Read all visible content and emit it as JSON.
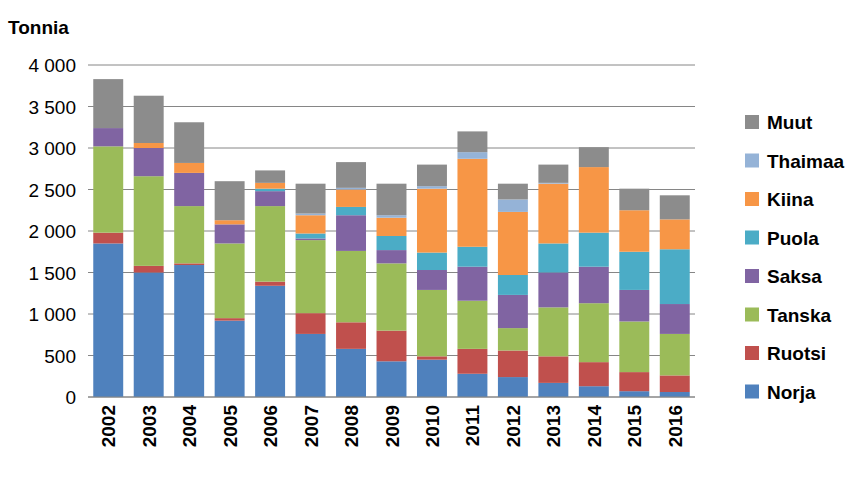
{
  "chart_data": {
    "type": "bar",
    "stacked": true,
    "grid": true,
    "legend": "right",
    "ylabel": "Tonnia",
    "categories": [
      "2002",
      "2003",
      "2004",
      "2005",
      "2006",
      "2007",
      "2008",
      "2009",
      "2010",
      "2011",
      "2012",
      "2013",
      "2014",
      "2015",
      "2016"
    ],
    "ylim": [
      0,
      4000
    ],
    "yticks": [
      0,
      500,
      {
        "value": 1000,
        "label": "1 000"
      },
      {
        "value": 1500,
        "label": "1 500"
      },
      {
        "value": 2000,
        "label": "2 000"
      },
      {
        "value": 2500,
        "label": "2 500"
      },
      {
        "value": 3000,
        "label": "3 000"
      },
      {
        "value": 3500,
        "label": "3 500"
      },
      {
        "value": 4000,
        "label": "4 000"
      }
    ],
    "series": [
      {
        "name": "Norja",
        "color": "#4f81bd",
        "values": [
          1850,
          1500,
          1590,
          920,
          1340,
          760,
          580,
          430,
          450,
          280,
          240,
          170,
          130,
          70,
          60
        ]
      },
      {
        "name": "Ruotsi",
        "color": "#c0504d",
        "values": [
          130,
          80,
          20,
          30,
          50,
          250,
          320,
          370,
          40,
          300,
          320,
          320,
          290,
          230,
          200
        ]
      },
      {
        "name": "Tanska",
        "color": "#9bbb59",
        "values": [
          1040,
          1080,
          690,
          900,
          910,
          880,
          860,
          810,
          800,
          580,
          270,
          590,
          710,
          610,
          500
        ]
      },
      {
        "name": "Saksa",
        "color": "#8064a2",
        "values": [
          220,
          340,
          400,
          230,
          180,
          20,
          430,
          160,
          240,
          410,
          400,
          420,
          440,
          380,
          360
        ]
      },
      {
        "name": "Puola",
        "color": "#4bacc6",
        "values": [
          0,
          0,
          0,
          0,
          30,
          60,
          100,
          170,
          210,
          240,
          240,
          350,
          410,
          460,
          660
        ]
      },
      {
        "name": "Kiina",
        "color": "#f79646",
        "values": [
          0,
          60,
          120,
          50,
          70,
          220,
          210,
          220,
          770,
          1060,
          760,
          720,
          790,
          500,
          360
        ]
      },
      {
        "name": "Thaimaa",
        "color": "#95b3d7",
        "values": [
          0,
          0,
          0,
          0,
          0,
          20,
          20,
          30,
          30,
          80,
          150,
          10,
          0,
          0,
          0
        ]
      },
      {
        "name": "Muut",
        "color": "#8c8c8c",
        "values": [
          590,
          570,
          490,
          470,
          150,
          360,
          310,
          380,
          260,
          250,
          190,
          220,
          240,
          260,
          290
        ]
      }
    ]
  }
}
